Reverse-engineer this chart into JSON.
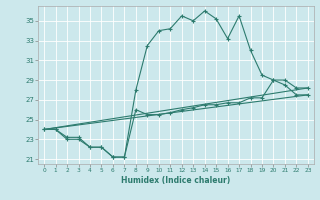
{
  "xlabel": "Humidex (Indice chaleur)",
  "bg_color": "#cce8ec",
  "grid_color": "#ffffff",
  "line_color": "#2d7b6e",
  "xlim": [
    -0.5,
    23.5
  ],
  "ylim": [
    20.5,
    36.5
  ],
  "xticks": [
    0,
    1,
    2,
    3,
    4,
    5,
    6,
    7,
    8,
    9,
    10,
    11,
    12,
    13,
    14,
    15,
    16,
    17,
    18,
    19,
    20,
    21,
    22,
    23
  ],
  "yticks": [
    21,
    23,
    25,
    27,
    29,
    31,
    33,
    35
  ],
  "line1_x": [
    0,
    1,
    2,
    3,
    4,
    5,
    6,
    7,
    8,
    9,
    10,
    11,
    12,
    13,
    14,
    15,
    16,
    17,
    18,
    19,
    20,
    21,
    22,
    23
  ],
  "line1_y": [
    24.0,
    24.0,
    23.0,
    23.0,
    22.2,
    22.2,
    21.2,
    21.2,
    28.0,
    32.5,
    34.0,
    34.2,
    35.5,
    35.0,
    36.0,
    35.2,
    33.2,
    35.5,
    32.0,
    29.5,
    29.0,
    28.5,
    27.5,
    27.5
  ],
  "line2_x": [
    0,
    1,
    2,
    3,
    4,
    5,
    6,
    7,
    8,
    9,
    10,
    11,
    12,
    13,
    14,
    15,
    16,
    17,
    18,
    19,
    20,
    21,
    22,
    23
  ],
  "line2_y": [
    24.0,
    24.0,
    23.2,
    23.2,
    22.2,
    22.2,
    21.2,
    21.2,
    26.0,
    25.5,
    25.5,
    25.7,
    26.0,
    26.2,
    26.5,
    26.5,
    26.7,
    26.7,
    27.2,
    27.2,
    29.0,
    29.0,
    28.2,
    28.2
  ],
  "line3_x": [
    0,
    23
  ],
  "line3_y": [
    24.0,
    27.5
  ],
  "line4_x": [
    0,
    23
  ],
  "line4_y": [
    24.0,
    28.2
  ]
}
